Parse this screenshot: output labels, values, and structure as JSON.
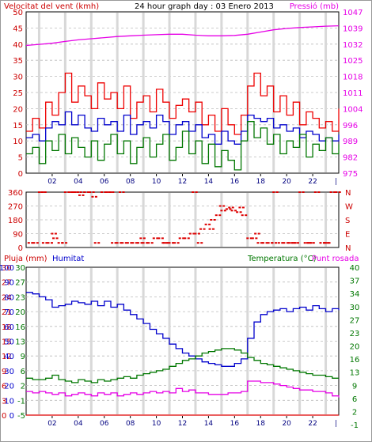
{
  "chart_data": [
    {
      "type": "line",
      "title": "24 hour graph day : 03 Enero 2013",
      "ylabel_left": "Velocitat del vent (kmh)",
      "ylabel_right": "Pressió (mb)",
      "x_ticks": [
        "02",
        "04",
        "06",
        "08",
        "10",
        "12",
        "14",
        "16",
        "18",
        "20",
        "22"
      ],
      "left_ticks": [
        "0",
        "5",
        "10",
        "15",
        "20",
        "25",
        "30",
        "35",
        "40",
        "45",
        "50"
      ],
      "right_ticks": [
        "975",
        "982",
        "989",
        "996",
        "1004",
        "1011",
        "1018",
        "1025",
        "1032",
        "1039",
        "1047"
      ],
      "ylim_left": [
        0,
        50
      ],
      "ylim_right": [
        975,
        1047
      ],
      "grid": true,
      "series": [
        {
          "name": "",
          "axis": "right",
          "color": "#e600e6",
          "x": [
            0,
            1,
            2,
            3,
            4,
            5,
            6,
            7,
            8,
            9,
            10,
            11,
            12,
            13,
            14,
            15,
            16,
            17,
            18,
            19,
            20,
            21,
            22,
            23,
            24
          ],
          "values": [
            1032,
            1032.5,
            1033,
            1033.8,
            1034.5,
            1035,
            1035.5,
            1036,
            1036.3,
            1036.6,
            1036.8,
            1037,
            1037,
            1036.6,
            1036.3,
            1036.3,
            1036.5,
            1037,
            1038,
            1039,
            1039.6,
            1040,
            1040.3,
            1040.6,
            1040.8
          ]
        },
        {
          "name": "",
          "axis": "left",
          "color": "#ee0000",
          "x": [
            0,
            0.5,
            1,
            1.5,
            2,
            2.5,
            3,
            3.5,
            4,
            4.5,
            5,
            5.5,
            6,
            6.5,
            7,
            7.5,
            8,
            8.5,
            9,
            9.5,
            10,
            10.5,
            11,
            11.5,
            12,
            12.5,
            13,
            13.5,
            14,
            14.5,
            15,
            15.5,
            16,
            16.5,
            17,
            17.5,
            18,
            18.5,
            19,
            19.5,
            20,
            20.5,
            21,
            21.5,
            22,
            22.5,
            23,
            23.5,
            24
          ],
          "values": [
            13,
            17,
            14,
            22,
            18,
            25,
            31,
            22,
            27,
            24,
            20,
            28,
            23,
            25,
            20,
            27,
            17,
            22,
            24,
            19,
            26,
            22,
            17,
            21,
            23,
            19,
            22,
            15,
            18,
            13,
            20,
            15,
            12,
            18,
            27,
            31,
            24,
            27,
            19,
            24,
            18,
            22,
            15,
            19,
            17,
            14,
            16,
            13,
            20
          ]
        },
        {
          "name": "",
          "axis": "left",
          "color": "#0000cc",
          "x": [
            0,
            0.5,
            1,
            1.5,
            2,
            2.5,
            3,
            3.5,
            4,
            4.5,
            5,
            5.5,
            6,
            6.5,
            7,
            7.5,
            8,
            8.5,
            9,
            9.5,
            10,
            10.5,
            11,
            11.5,
            12,
            12.5,
            13,
            13.5,
            14,
            14.5,
            15,
            15.5,
            16,
            16.5,
            17,
            17.5,
            18,
            18.5,
            19,
            19.5,
            20,
            20.5,
            21,
            21.5,
            22,
            22.5,
            23,
            23.5,
            24
          ],
          "values": [
            11,
            12,
            10,
            14,
            16,
            15,
            19,
            15,
            18,
            14,
            13,
            17,
            15,
            16,
            13,
            18,
            12,
            15,
            16,
            14,
            18,
            16,
            12,
            15,
            16,
            13,
            15,
            11,
            12,
            9,
            13,
            10,
            9,
            13,
            18,
            17,
            16,
            17,
            14,
            15,
            13,
            14,
            11,
            13,
            12,
            10,
            11,
            10,
            12
          ]
        },
        {
          "name": "",
          "axis": "left",
          "color": "#007700",
          "x": [
            0,
            0.5,
            1,
            1.5,
            2,
            2.5,
            3,
            3.5,
            4,
            4.5,
            5,
            5.5,
            6,
            6.5,
            7,
            7.5,
            8,
            8.5,
            9,
            9.5,
            10,
            10.5,
            11,
            11.5,
            12,
            12.5,
            13,
            13.5,
            14,
            14.5,
            15,
            15.5,
            16,
            16.5,
            17,
            17.5,
            18,
            18.5,
            19,
            19.5,
            20,
            20.5,
            21,
            21.5,
            22,
            22.5,
            23,
            23.5,
            24
          ],
          "values": [
            6,
            8,
            3,
            10,
            7,
            12,
            6,
            11,
            8,
            5,
            10,
            4,
            9,
            12,
            6,
            10,
            3,
            8,
            11,
            5,
            9,
            12,
            4,
            8,
            13,
            6,
            10,
            3,
            9,
            2,
            7,
            4,
            1,
            10,
            16,
            11,
            14,
            9,
            12,
            6,
            10,
            8,
            12,
            5,
            9,
            7,
            11,
            6,
            9
          ]
        }
      ]
    },
    {
      "type": "scatter",
      "title": "",
      "left_ticks": [
        "0",
        "90",
        "180",
        "270",
        "360"
      ],
      "right_ticks": [
        "N",
        "E",
        "S",
        "W",
        "N"
      ],
      "x_ticks": [],
      "ylim": [
        0,
        360
      ],
      "grid": true,
      "series": [
        {
          "name": "",
          "color": "#dd0000",
          "x": [
            0.2,
            0.6,
            1,
            1.3,
            1.7,
            2.1,
            2.5,
            3,
            3.3,
            3.7,
            4.1,
            4.5,
            4.9,
            5.3,
            5.8,
            6.2,
            6.6,
            7,
            7.4,
            7.8,
            8.2,
            8.6,
            9,
            9.4,
            9.8,
            10.2,
            10.6,
            11,
            11.4,
            11.8,
            12.2,
            12.6,
            13,
            13.4,
            13.8,
            14.2,
            14.6,
            15,
            15.4,
            15.8,
            16.2,
            16.6,
            17,
            17.4,
            17.8,
            18.2,
            18.6,
            19,
            19.4,
            19.8,
            20.2,
            20.6,
            21,
            21.4,
            21.8,
            22.2,
            22.6,
            23,
            23.4,
            23.8,
            2,
            3.5,
            4.2,
            5.1,
            6.4,
            7.2,
            1.2,
            2.8,
            8.8,
            10.5,
            12.8,
            13.2,
            14.1,
            14.9,
            15.6,
            16.4,
            17.6,
            18.9,
            20.4,
            21.6,
            22.9
          ],
          "values": [
            30,
            30,
            360,
            30,
            30,
            60,
            30,
            360,
            360,
            360,
            340,
            360,
            360,
            30,
            360,
            360,
            30,
            30,
            30,
            30,
            30,
            30,
            30,
            30,
            60,
            60,
            30,
            30,
            30,
            60,
            60,
            90,
            90,
            120,
            150,
            180,
            210,
            240,
            250,
            240,
            230,
            210,
            60,
            60,
            30,
            30,
            30,
            360,
            30,
            30,
            30,
            30,
            360,
            30,
            30,
            360,
            30,
            30,
            360,
            360,
            90,
            360,
            360,
            330,
            360,
            360,
            360,
            30,
            60,
            30,
            360,
            30,
            120,
            270,
            260,
            260,
            90,
            30,
            30,
            30,
            30
          ]
        }
      ]
    },
    {
      "type": "line",
      "title": "",
      "labels": [
        "Pluja (mm)",
        "Humitat",
        "Temperatura (°C)",
        "Punt rosada"
      ],
      "ticks_rain": [
        "0",
        "3",
        "6",
        "9",
        "12",
        "15",
        "18",
        "21",
        "24",
        "27",
        "30"
      ],
      "ticks_hum": [
        "0",
        "10",
        "20",
        "30",
        "40",
        "50",
        "60",
        "70",
        "80",
        "90",
        "100"
      ],
      "ticks_temp": [
        "-5",
        "-1",
        "2",
        "6",
        "9",
        "13",
        "16",
        "20",
        "23",
        "27",
        "30"
      ],
      "ticks_temp_right": [
        "-1",
        "2",
        "6",
        "9",
        "13",
        "16",
        "20",
        "23",
        "27",
        "30",
        "34",
        "37",
        "40"
      ],
      "x_ticks": [
        "02",
        "04",
        "06",
        "08",
        "10",
        "12",
        "14",
        "16",
        "18",
        "20",
        "22"
      ],
      "ylim_hum": [
        0,
        100
      ],
      "grid": true,
      "series": [
        {
          "name": "Humitat",
          "color": "#0000cc",
          "x": [
            0,
            0.5,
            1,
            1.5,
            2,
            2.5,
            3,
            3.5,
            4,
            4.5,
            5,
            5.5,
            6,
            6.5,
            7,
            7.5,
            8,
            8.5,
            9,
            9.5,
            10,
            10.5,
            11,
            11.5,
            12,
            12.5,
            13,
            13.5,
            14,
            14.5,
            15,
            15.5,
            16,
            16.5,
            17,
            17.5,
            18,
            18.5,
            19,
            19.5,
            20,
            20.5,
            21,
            21.5,
            22,
            22.5,
            23,
            23.5,
            24
          ],
          "values": [
            83,
            82,
            80,
            78,
            73,
            74,
            75,
            77,
            76,
            75,
            77,
            74,
            77,
            73,
            75,
            71,
            68,
            65,
            62,
            58,
            55,
            52,
            48,
            45,
            42,
            40,
            38,
            36,
            35,
            34,
            33,
            33,
            35,
            38,
            52,
            63,
            68,
            70,
            71,
            72,
            70,
            72,
            73,
            71,
            74,
            72,
            70,
            72,
            71
          ]
        },
        {
          "name": "Temperatura (°C)",
          "color": "#007700",
          "x": [
            0,
            0.5,
            1,
            1.5,
            2,
            2.5,
            3,
            3.5,
            4,
            4.5,
            5,
            5.5,
            6,
            6.5,
            7,
            7.5,
            8,
            8.5,
            9,
            9.5,
            10,
            10.5,
            11,
            11.5,
            12,
            12.5,
            13,
            13.5,
            14,
            14.5,
            15,
            15.5,
            16,
            16.5,
            17,
            17.5,
            18,
            18.5,
            19,
            19.5,
            20,
            20.5,
            21,
            21.5,
            22,
            22.5,
            23,
            23.5,
            24
          ],
          "values": [
            25,
            24,
            24,
            25,
            27,
            24,
            23,
            22,
            24,
            23,
            22,
            24,
            23,
            24,
            25,
            26,
            25,
            27,
            28,
            29,
            30,
            31,
            33,
            35,
            37,
            38,
            40,
            42,
            43,
            44,
            45,
            45,
            44,
            42,
            39,
            37,
            35,
            34,
            33,
            32,
            31,
            30,
            29,
            28,
            27,
            27,
            26,
            25,
            25
          ]
        },
        {
          "name": "Punt rosada",
          "color": "#e600e6",
          "x": [
            0,
            0.5,
            1,
            1.5,
            2,
            2.5,
            3,
            3.5,
            4,
            4.5,
            5,
            5.5,
            6,
            6.5,
            7,
            7.5,
            8,
            8.5,
            9,
            9.5,
            10,
            10.5,
            11,
            11.5,
            12,
            12.5,
            13,
            13.5,
            14,
            14.5,
            15,
            15.5,
            16,
            16.5,
            17,
            17.5,
            18,
            18.5,
            19,
            19.5,
            20,
            20.5,
            21,
            21.5,
            22,
            22.5,
            23,
            23.5,
            24
          ],
          "values": [
            16,
            15,
            16,
            15,
            14,
            15,
            13,
            14,
            15,
            14,
            13,
            15,
            14,
            15,
            13,
            14,
            15,
            14,
            15,
            16,
            15,
            16,
            15,
            18,
            16,
            17,
            15,
            15,
            14,
            14,
            14,
            15,
            15,
            16,
            23,
            23,
            22,
            22,
            21,
            20,
            19,
            18,
            17,
            17,
            16,
            16,
            15,
            13,
            12
          ]
        },
        {
          "name": "Pluja (mm)",
          "color": "#dd0000",
          "x": [
            0,
            24
          ],
          "values": [
            0,
            0
          ]
        }
      ]
    }
  ]
}
